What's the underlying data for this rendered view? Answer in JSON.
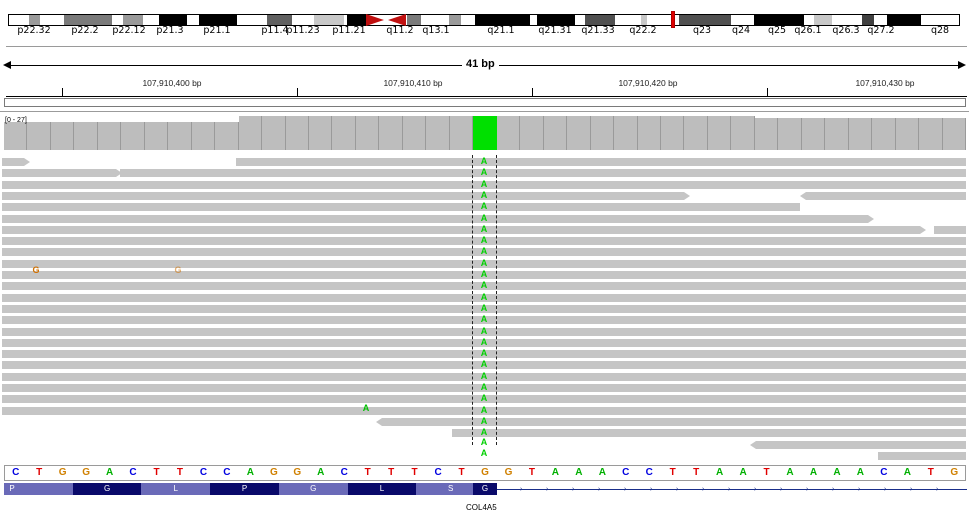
{
  "ideogram": {
    "bands": [
      "p22.32",
      "p22.2",
      "p22.12",
      "p21.3",
      "p21.1",
      "p11.4",
      "p11.23",
      "p11.21",
      "q11.2",
      "q13.1",
      "q21.1",
      "q21.31",
      "q21.33",
      "q22.2",
      "q23",
      "q24",
      "q25",
      "q26.1",
      "q26.3",
      "q27.2",
      "q28"
    ],
    "centromere_color": "#c01010"
  },
  "ruler": {
    "span_label": "41 bp",
    "ticks": [
      "107,910,400 bp",
      "107,910,410 bp",
      "107,910,420 bp",
      "107,910,430 bp"
    ]
  },
  "coverage": {
    "range_label": "[0 - 27]",
    "highlight_color": "#00e000",
    "bar_color": "#bdbdbd"
  },
  "mismatches": {
    "alt_allele": "A",
    "alt_count": 27,
    "other": [
      {
        "base": "G",
        "color": "#d07000"
      },
      {
        "base": "G",
        "color": "#d07000"
      },
      {
        "base": "A",
        "color": "#00c000"
      }
    ]
  },
  "sequence": {
    "bases": [
      "C",
      "T",
      "G",
      "G",
      "A",
      "C",
      "T",
      "T",
      "C",
      "C",
      "A",
      "G",
      "G",
      "A",
      "C",
      "T",
      "T",
      "T",
      "C",
      "T",
      "G",
      "G",
      "T",
      "A",
      "A",
      "A",
      "C",
      "C",
      "T",
      "T",
      "A",
      "A",
      "T",
      "A",
      "A",
      "A",
      "A",
      "C",
      "A",
      "T",
      "G"
    ],
    "colors": {
      "A": "#00b000",
      "C": "#0000e0",
      "G": "#d08000",
      "T": "#e00000"
    }
  },
  "gene": {
    "name": "COL4A5",
    "amino_acids": [
      "P",
      "G",
      "L",
      "P",
      "G",
      "L",
      "S",
      "G"
    ],
    "exon_colors": [
      "#6a6ab8",
      "#0a0a6a"
    ]
  }
}
